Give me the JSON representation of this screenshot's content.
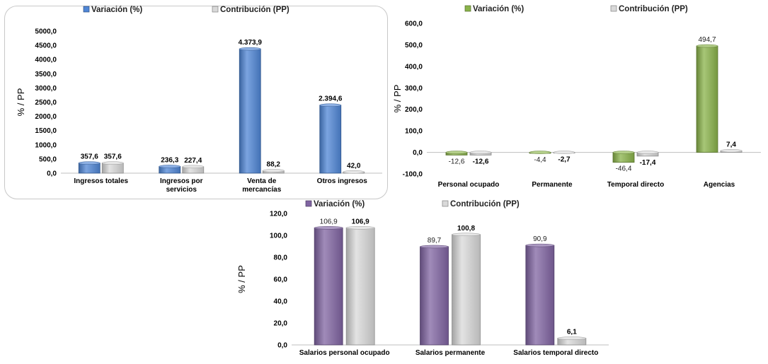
{
  "chart_data": [
    {
      "type": "bar",
      "ylabel": "% / PP",
      "ylim": [
        0,
        5000
      ],
      "yticks": [
        "0,0",
        "500,0",
        "1000,0",
        "1500,0",
        "2000,0",
        "2500,0",
        "3000,0",
        "3500,0",
        "4000,0",
        "4500,0",
        "5000,0"
      ],
      "ytick_values": [
        0,
        500,
        1000,
        1500,
        2000,
        2500,
        3000,
        3500,
        4000,
        4500,
        5000
      ],
      "categories": [
        [
          "Ingresos totales"
        ],
        [
          "Ingresos por",
          "servicios"
        ],
        [
          "Venta de",
          "mercancías"
        ],
        [
          "Otros ingresos"
        ]
      ],
      "legend_position": "top",
      "series": [
        {
          "name": "Variación (%)",
          "color": "#4f86d6",
          "values": [
            357.6,
            236.3,
            4373.9,
            2394.6
          ],
          "labels": [
            "357,6",
            "236,3",
            "4.373,9",
            "2.394,6"
          ]
        },
        {
          "name": "Contribución (PP)",
          "color": "#d9d9d9",
          "values": [
            357.6,
            227.4,
            88.2,
            42.0
          ],
          "labels": [
            "357,6",
            "227,4",
            "88,2",
            "42,0"
          ]
        }
      ]
    },
    {
      "type": "bar",
      "ylabel": "% / PP",
      "ylim": [
        -100,
        600
      ],
      "yticks": [
        "-100,0",
        "0,0",
        "100,0",
        "200,0",
        "300,0",
        "400,0",
        "500,0",
        "600,0"
      ],
      "ytick_values": [
        -100,
        0,
        100,
        200,
        300,
        400,
        500,
        600
      ],
      "categories": [
        [
          "Personal ocupado"
        ],
        [
          "Permanente"
        ],
        [
          "Temporal directo"
        ],
        [
          "Agencias"
        ]
      ],
      "legend_position": "top",
      "series": [
        {
          "name": "Variación (%)",
          "color": "#8ab34a",
          "values": [
            -12.6,
            -4.4,
            -46.4,
            494.7
          ],
          "labels": [
            "-12,6",
            "-4,4",
            "-46,4",
            "494,7"
          ]
        },
        {
          "name": "Contribución (PP)",
          "color": "#d9d9d9",
          "values": [
            -12.6,
            -2.7,
            -17.4,
            7.4
          ],
          "labels": [
            "-12,6",
            "-2,7",
            "-17,4",
            "7,4"
          ]
        }
      ]
    },
    {
      "type": "bar",
      "ylabel": "% / PP",
      "ylim": [
        0,
        120
      ],
      "yticks": [
        "0,0",
        "20,0",
        "40,0",
        "60,0",
        "80,0",
        "100,0",
        "120,0"
      ],
      "ytick_values": [
        0,
        20,
        40,
        60,
        80,
        100,
        120
      ],
      "categories": [
        [
          "Salarios personal ocupado"
        ],
        [
          "Salarios permanente"
        ],
        [
          "Salarios temporal directo"
        ]
      ],
      "legend_position": "top",
      "series": [
        {
          "name": "Variación (%)",
          "color": "#8064a2",
          "values": [
            106.9,
            89.7,
            90.9
          ],
          "labels": [
            "106,9",
            "89,7",
            "90,9"
          ]
        },
        {
          "name": "Contribución (PP)",
          "color": "#d9d9d9",
          "values": [
            106.9,
            100.8,
            6.1
          ],
          "labels": [
            "106,9",
            "100,8",
            "6,1"
          ]
        }
      ]
    }
  ]
}
